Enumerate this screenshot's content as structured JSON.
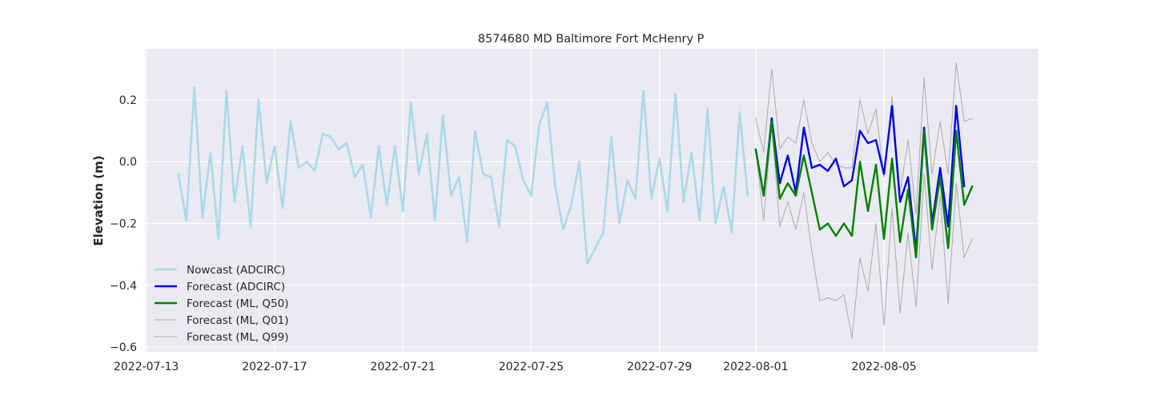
{
  "chart_data": {
    "type": "line",
    "title": "8574680 MD Baltimore Fort McHenry P",
    "xlabel": "",
    "ylabel": "Elevation (m)",
    "x_axis": {
      "type": "date",
      "range": [
        "2022-07-12T23:00",
        "2022-08-09T19:00"
      ],
      "ticks": [
        "2022-07-13",
        "2022-07-17",
        "2022-07-21",
        "2022-07-25",
        "2022-07-29",
        "2022-08-01",
        "2022-08-05"
      ]
    },
    "y_axis": {
      "range": [
        -0.615,
        0.365
      ],
      "ticks": [
        -0.6,
        -0.4,
        -0.2,
        0.0,
        0.2
      ],
      "tick_labels": [
        "−0.6",
        "−0.4",
        "−0.2",
        "0.0",
        "0.2"
      ]
    },
    "grid": true,
    "background": "#eaeaf2",
    "legend": {
      "placement": "lower-left",
      "entries": [
        "Nowcast (ADCIRC)",
        "Forecast (ADCIRC)",
        "Forecast (ML, Q50)",
        "Forecast (ML, Q01)",
        "Forecast (ML, Q99)"
      ]
    },
    "series": [
      {
        "name": "Nowcast (ADCIRC)",
        "color": "#add8e6",
        "start": "2022-07-14T00:00",
        "interval_hours": 6,
        "values": [
          -0.04,
          -0.19,
          0.24,
          -0.18,
          0.03,
          -0.25,
          0.23,
          -0.13,
          0.05,
          -0.21,
          0.2,
          -0.07,
          0.05,
          -0.15,
          0.13,
          -0.02,
          0.0,
          -0.03,
          0.09,
          0.08,
          0.04,
          0.06,
          -0.05,
          -0.01,
          -0.18,
          0.05,
          -0.14,
          0.05,
          -0.16,
          0.19,
          -0.04,
          0.09,
          -0.19,
          0.15,
          -0.11,
          -0.05,
          -0.26,
          0.1,
          -0.04,
          -0.05,
          -0.21,
          0.07,
          0.05,
          -0.06,
          -0.11,
          0.12,
          0.19,
          -0.08,
          -0.22,
          -0.14,
          0.0,
          -0.33,
          -0.28,
          -0.23,
          0.08,
          -0.2,
          -0.06,
          -0.12,
          0.23,
          -0.12,
          0.01,
          -0.16,
          0.22,
          -0.13,
          0.03,
          -0.19,
          0.17,
          -0.2,
          -0.08,
          -0.23,
          0.16,
          -0.11
        ]
      },
      {
        "name": "Forecast (ADCIRC)",
        "color": "#0000ee",
        "start": "2022-08-01T00:00",
        "interval_hours": 6,
        "values": [
          0.04,
          -0.11,
          0.14,
          -0.07,
          0.02,
          -0.1,
          0.11,
          -0.02,
          -0.01,
          -0.03,
          0.01,
          -0.08,
          -0.06,
          0.1,
          0.06,
          0.07,
          -0.04,
          0.18,
          -0.13,
          -0.05,
          -0.29,
          0.11,
          -0.2,
          -0.02,
          -0.21,
          0.18,
          -0.08
        ]
      },
      {
        "name": "Forecast (ML, Q50)",
        "color": "#008000",
        "start": "2022-08-01T00:00",
        "interval_hours": 6,
        "values": [
          0.04,
          -0.11,
          0.13,
          -0.12,
          -0.07,
          -0.11,
          0.02,
          -0.1,
          -0.22,
          -0.2,
          -0.24,
          -0.2,
          -0.24,
          0.0,
          -0.16,
          -0.01,
          -0.25,
          0.01,
          -0.26,
          -0.09,
          -0.31,
          0.1,
          -0.22,
          -0.05,
          -0.28,
          0.1,
          -0.14,
          -0.08
        ]
      },
      {
        "name": "Forecast (ML, Q01)",
        "color": "#b0b0b0",
        "start": "2022-08-01T00:00",
        "interval_hours": 6,
        "values": [
          0.04,
          -0.19,
          0.12,
          -0.21,
          -0.13,
          -0.22,
          -0.1,
          -0.29,
          -0.45,
          -0.44,
          -0.45,
          -0.43,
          -0.57,
          -0.31,
          -0.42,
          -0.2,
          -0.53,
          -0.15,
          -0.49,
          -0.23,
          -0.47,
          -0.04,
          -0.35,
          -0.11,
          -0.46,
          -0.07,
          -0.31,
          -0.25
        ]
      },
      {
        "name": "Forecast (ML, Q99)",
        "color": "#b0b0b0",
        "start": "2022-08-01T00:00",
        "interval_hours": 6,
        "values": [
          0.14,
          0.03,
          0.3,
          0.04,
          0.08,
          0.06,
          0.2,
          0.06,
          0.0,
          0.03,
          -0.01,
          -0.02,
          -0.02,
          0.2,
          0.09,
          0.17,
          -0.05,
          0.21,
          -0.1,
          0.07,
          -0.17,
          0.27,
          -0.04,
          0.13,
          -0.04,
          0.32,
          0.13,
          0.14
        ]
      }
    ]
  }
}
